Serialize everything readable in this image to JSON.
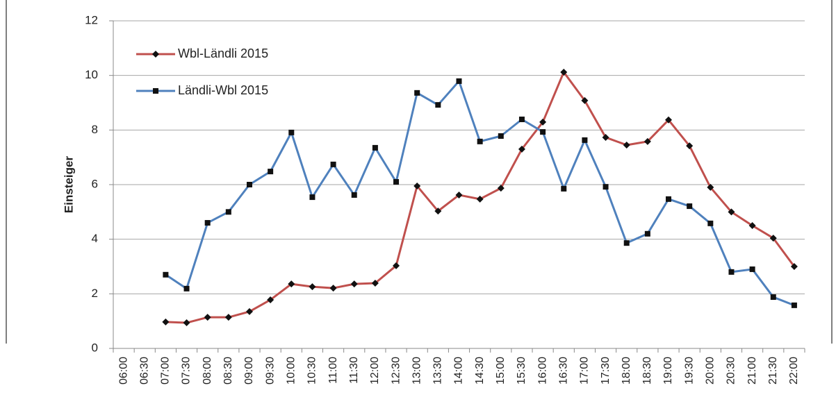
{
  "chart_data": {
    "type": "line",
    "ylabel": "Einsteiger",
    "categories": [
      "06:00",
      "06:30",
      "07:00",
      "07:30",
      "08:00",
      "08:30",
      "09:00",
      "09:30",
      "10:00",
      "10:30",
      "11:00",
      "11:30",
      "12:00",
      "12:30",
      "13:00",
      "13:30",
      "14:00",
      "14:30",
      "15:00",
      "15:30",
      "16:00",
      "16:30",
      "17:00",
      "17:30",
      "18:00",
      "18:30",
      "19:00",
      "19:30",
      "20:00",
      "20:30",
      "21:00",
      "21:30",
      "22:00"
    ],
    "series": [
      {
        "name": "Wbl-Ländli 2015",
        "color": "#c0504d",
        "marker": "diamond",
        "values": [
          null,
          null,
          0.97,
          0.94,
          1.14,
          1.14,
          1.35,
          1.78,
          2.36,
          2.26,
          2.21,
          2.36,
          2.39,
          3.03,
          5.95,
          5.03,
          5.62,
          5.47,
          5.87,
          7.3,
          8.29,
          10.12,
          9.08,
          7.73,
          7.45,
          7.58,
          8.37,
          7.42,
          5.9,
          5.0,
          4.5,
          4.04,
          3.0
        ]
      },
      {
        "name": "Ländli-Wbl 2015",
        "color": "#4f81bd",
        "marker": "square",
        "values": [
          null,
          null,
          2.7,
          2.19,
          4.6,
          5.0,
          6.0,
          6.48,
          7.91,
          5.54,
          6.74,
          5.62,
          7.35,
          6.1,
          9.36,
          8.92,
          9.79,
          7.58,
          7.78,
          8.39,
          7.93,
          5.85,
          7.63,
          5.92,
          3.86,
          4.2,
          5.47,
          5.21,
          4.58,
          2.8,
          2.9,
          1.88,
          1.58
        ]
      }
    ],
    "ylim": [
      0,
      12
    ],
    "yticks": [
      0,
      2,
      4,
      6,
      8,
      10,
      12
    ],
    "grid": true
  }
}
